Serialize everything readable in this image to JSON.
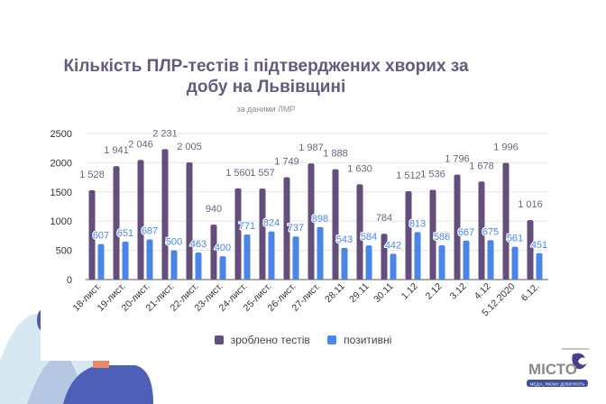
{
  "chart_data": {
    "type": "bar",
    "title": "Кількість ПЛР-тестів і підтверджених хворих за добу на Львівщині",
    "subtitle": "за даними ЛМР",
    "categories": [
      "18-лист.",
      "19-лист.",
      "20-лист.",
      "21-лист.",
      "22-лист.",
      "23-лист.",
      "24-лист.",
      "25-лист.",
      "26-лист.",
      "27-лист.",
      "28.11",
      "29.11",
      "30.11",
      "1.12",
      "2.12",
      "3.12",
      "4.12",
      "5.12.2020",
      "6.12."
    ],
    "series": [
      {
        "name": "зроблено тестів",
        "color": "#634e7c",
        "values": [
          1528,
          1941,
          2046,
          2231,
          2005,
          940,
          1560,
          1557,
          1749,
          1987,
          1888,
          1630,
          784,
          1512,
          1536,
          1796,
          1678,
          1996,
          1016
        ],
        "labels": [
          "1 528",
          "1 941",
          "2 046",
          "2 231",
          "2 005",
          "940",
          "1 560",
          "1 557",
          "1 749",
          "1 987",
          "1 888",
          "1 630",
          "784",
          "1 512",
          "1 536",
          "1 796",
          "1 678",
          "1 996",
          "1 016"
        ]
      },
      {
        "name": "позитивні",
        "color": "#4a86e8",
        "values": [
          607,
          651,
          687,
          500,
          463,
          400,
          771,
          824,
          737,
          898,
          543,
          584,
          442,
          813,
          586,
          667,
          675,
          561,
          451
        ],
        "labels": [
          "607",
          "651",
          "687",
          "500",
          "463",
          "400",
          "771",
          "824",
          "737",
          "898",
          "543",
          "584",
          "442",
          "813",
          "586",
          "667",
          "675",
          "561",
          "451"
        ]
      }
    ],
    "ylim": [
      0,
      2500
    ],
    "yticks": [
      "0",
      "500",
      "1000",
      "1500",
      "2000",
      "2500"
    ],
    "grid": true,
    "legend": "bottom"
  },
  "logo": {
    "text": "МІСТО",
    "tagline": "МЕДІА, ЯКОМУ ДОВІРЯЮТЬ"
  }
}
